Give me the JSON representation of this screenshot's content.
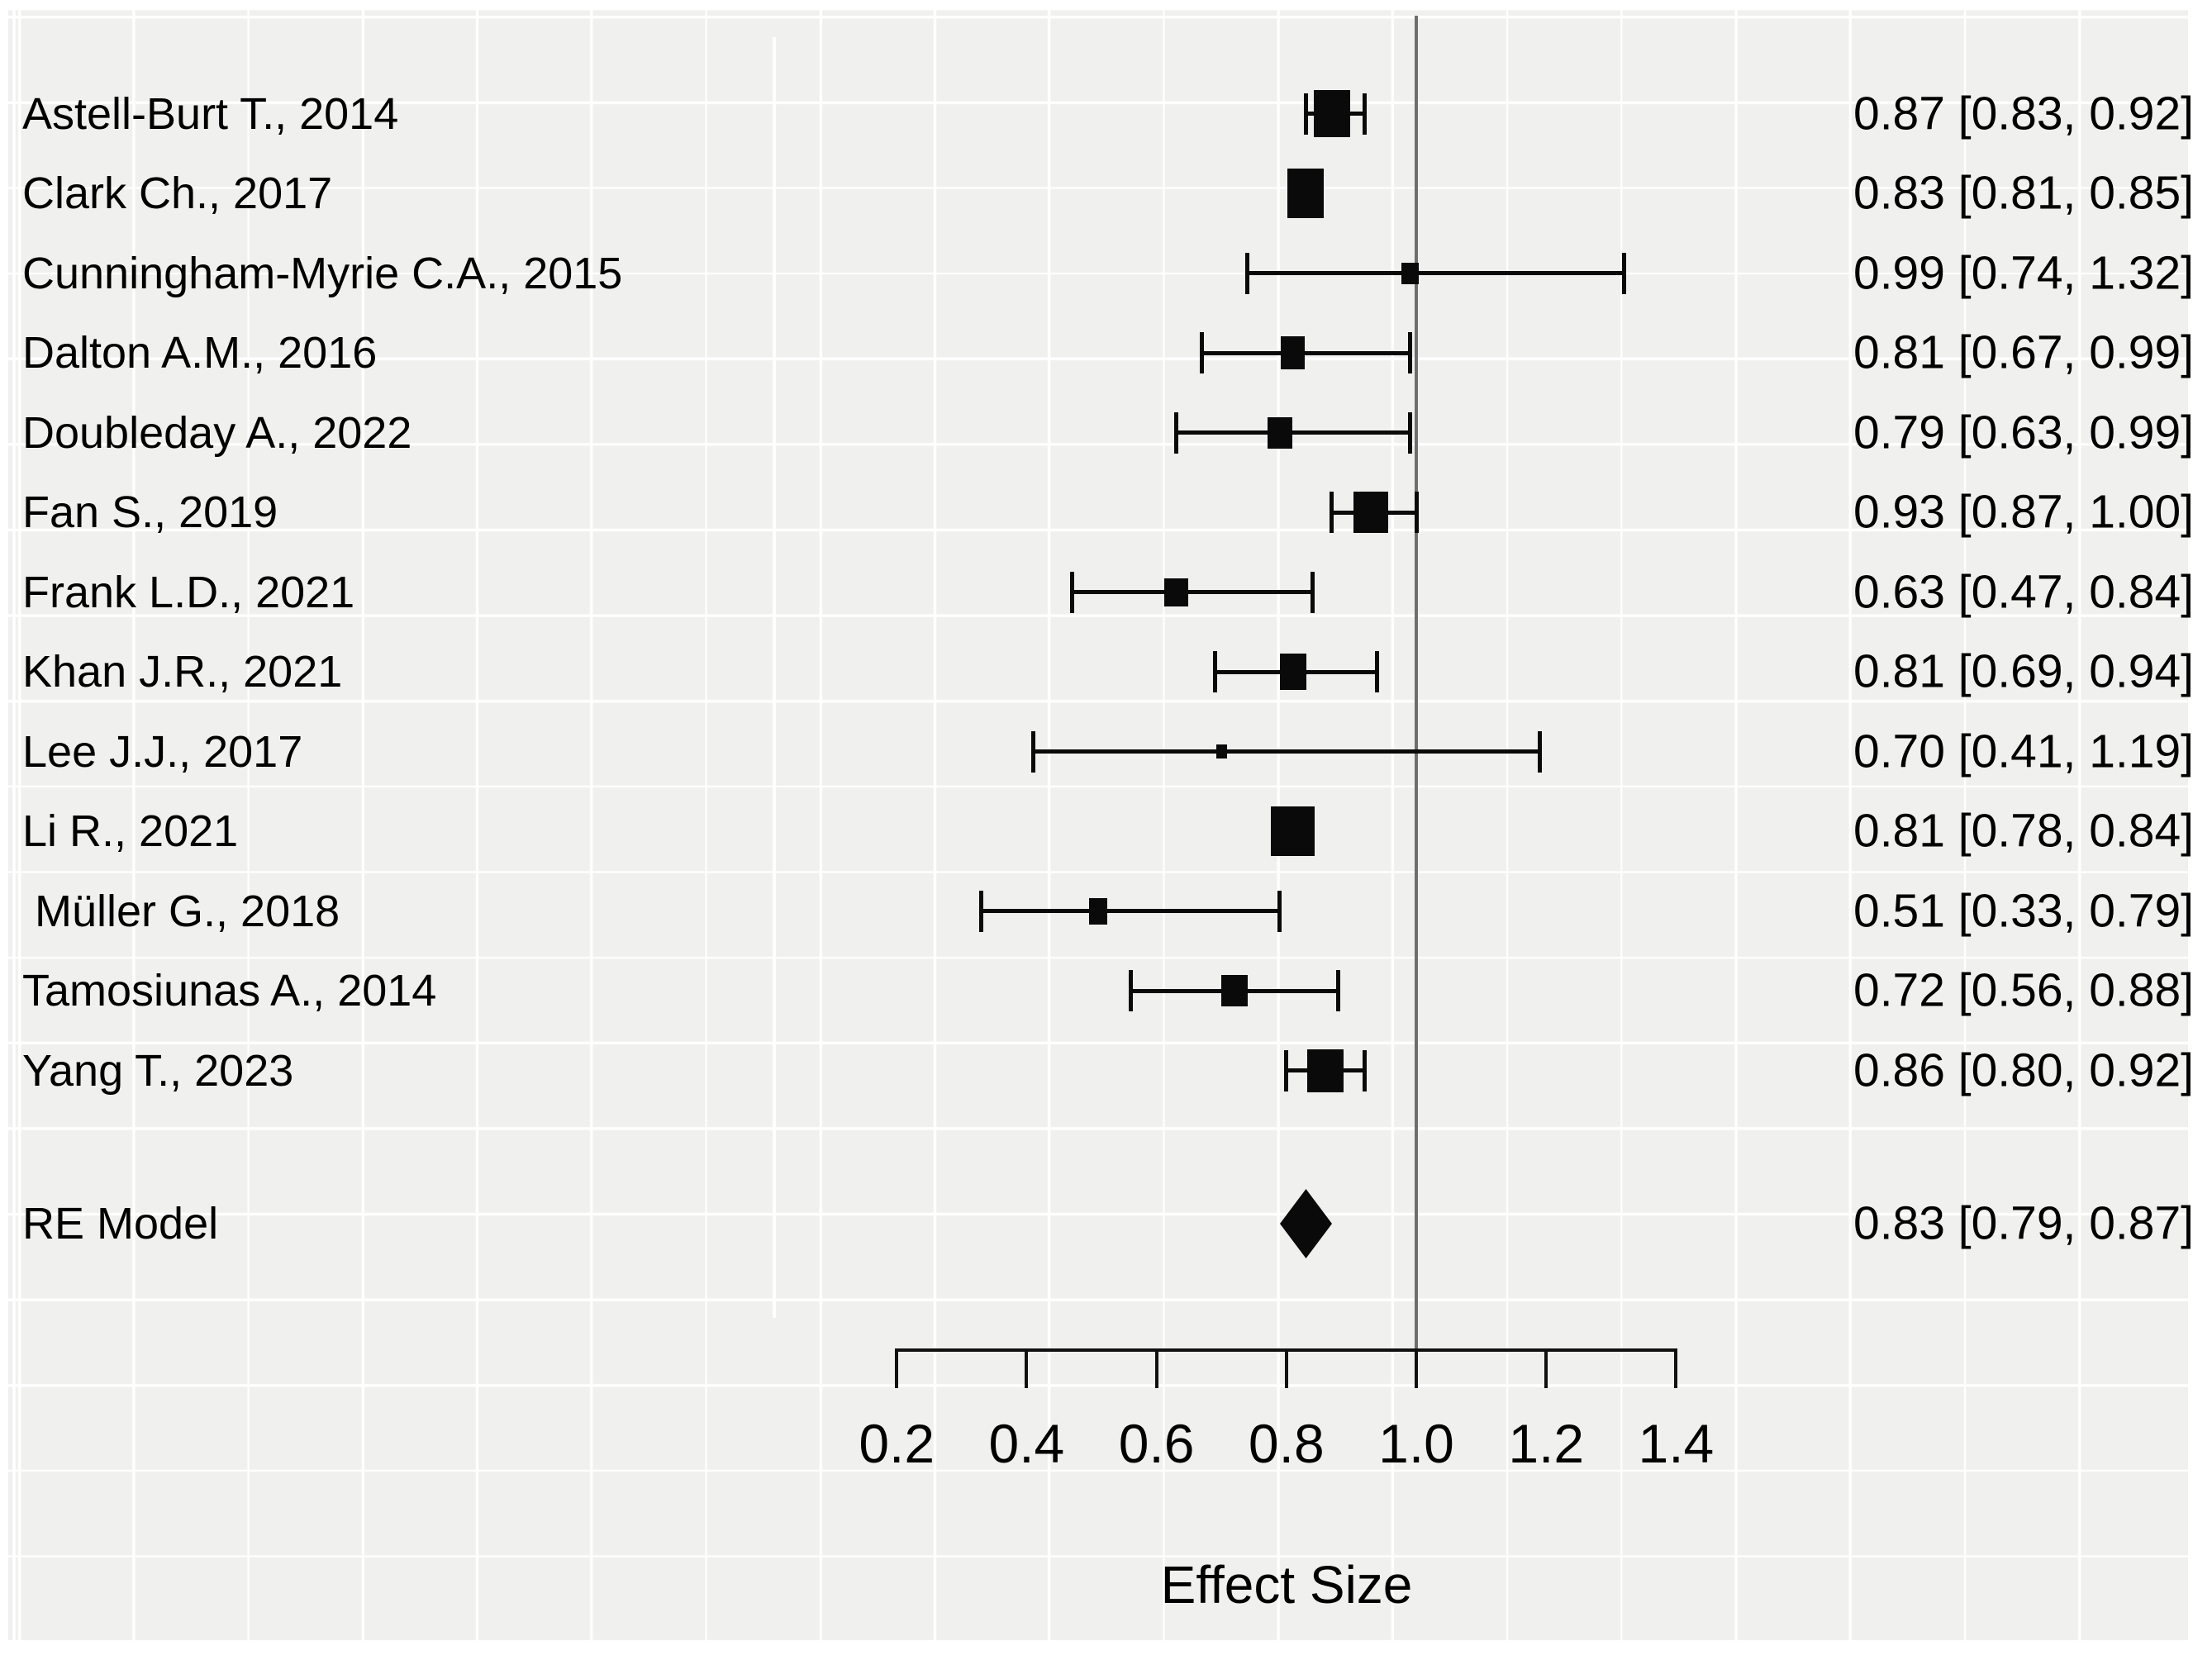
{
  "colors": {
    "page_background": "#ffffff",
    "panel_background": "#f0f0ee",
    "grid_color": "#ffffff",
    "marker_color": "#0a0a0a",
    "reference_line_color": "#6e6e6e",
    "text_color": "#000000"
  },
  "chart_data": {
    "type": "forest",
    "title": "",
    "xlabel": "Effect Size",
    "x_ticks": [
      0.2,
      0.4,
      0.6,
      0.8,
      1.0,
      1.2,
      1.4
    ],
    "x_tick_labels": [
      "0.2",
      "0.4",
      "0.6",
      "0.8",
      "1.0",
      "1.2",
      "1.4"
    ],
    "axis_range": [
      0.2,
      1.4
    ],
    "reference_line_x": 1.0,
    "grid": true,
    "legend": "none",
    "studies": [
      {
        "label": "Astell-Burt T., 2014",
        "est": 0.87,
        "lo": 0.83,
        "hi": 0.92,
        "annotation": "0.87 [0.83, 0.92]",
        "marker_size": [
          44,
          57
        ]
      },
      {
        "label": "Clark Ch., 2017",
        "est": 0.83,
        "lo": 0.81,
        "hi": 0.85,
        "annotation": "0.83 [0.81, 0.85]",
        "marker_size": [
          44,
          60
        ]
      },
      {
        "label": "Cunningham-Myrie C.A., 2015",
        "est": 0.99,
        "lo": 0.74,
        "hi": 1.32,
        "annotation": "0.99 [0.74, 1.32]",
        "marker_size": [
          21,
          26
        ]
      },
      {
        "label": "Dalton A.M., 2016",
        "est": 0.81,
        "lo": 0.67,
        "hi": 0.99,
        "annotation": "0.81 [0.67, 0.99]",
        "marker_size": [
          29,
          40
        ]
      },
      {
        "label": "Doubleday A., 2022",
        "est": 0.79,
        "lo": 0.63,
        "hi": 0.99,
        "annotation": "0.79 [0.63, 0.99]",
        "marker_size": [
          30,
          38
        ]
      },
      {
        "label": "Fan S., 2019",
        "est": 0.93,
        "lo": 0.87,
        "hi": 1.0,
        "annotation": "0.93 [0.87, 1.00]",
        "marker_size": [
          42,
          50
        ]
      },
      {
        "label": "Frank L.D., 2021",
        "est": 0.63,
        "lo": 0.47,
        "hi": 0.84,
        "annotation": "0.63 [0.47, 0.84]",
        "marker_size": [
          29,
          34
        ]
      },
      {
        "label": "Khan J.R., 2021",
        "est": 0.81,
        "lo": 0.69,
        "hi": 0.94,
        "annotation": "0.81 [0.69, 0.94]",
        "marker_size": [
          32,
          44
        ]
      },
      {
        "label": "Lee J.J., 2017",
        "est": 0.7,
        "lo": 0.41,
        "hi": 1.19,
        "annotation": "0.70 [0.41, 1.19]",
        "marker_size": [
          13,
          17
        ]
      },
      {
        "label": "Li R., 2021",
        "est": 0.81,
        "lo": 0.78,
        "hi": 0.84,
        "annotation": "0.81 [0.78, 0.84]",
        "marker_size": [
          53,
          60
        ]
      },
      {
        "label": " Müller G., 2018",
        "est": 0.51,
        "lo": 0.33,
        "hi": 0.79,
        "annotation": "0.51 [0.33, 0.79]",
        "marker_size": [
          22,
          32
        ]
      },
      {
        "label": "Tamosiunas A., 2014",
        "est": 0.72,
        "lo": 0.56,
        "hi": 0.88,
        "annotation": "0.72 [0.56, 0.88]",
        "marker_size": [
          32,
          38
        ]
      },
      {
        "label": "Yang T., 2023",
        "est": 0.86,
        "lo": 0.8,
        "hi": 0.92,
        "annotation": "0.86 [0.80, 0.92]",
        "marker_size": [
          44,
          52
        ]
      }
    ],
    "summary": {
      "label": "RE Model",
      "est": 0.83,
      "lo": 0.79,
      "hi": 0.87,
      "annotation": "0.83 [0.79, 0.87]"
    }
  }
}
